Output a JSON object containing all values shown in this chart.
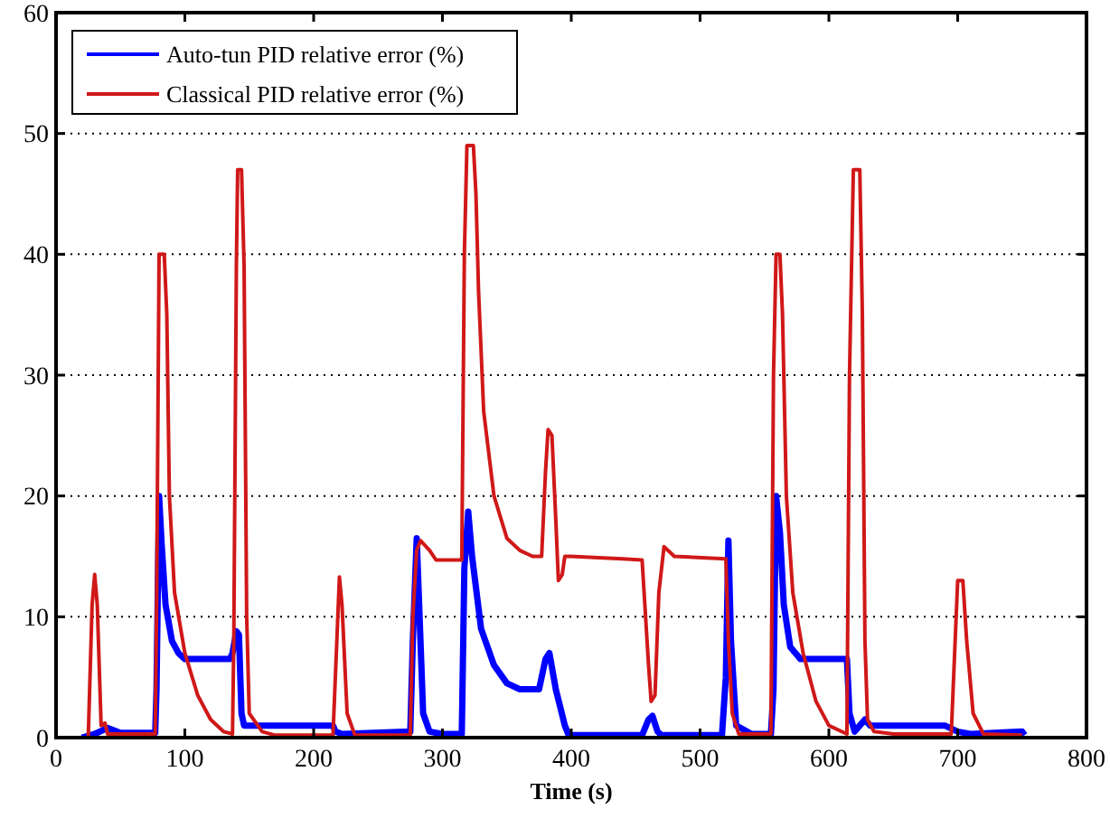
{
  "chart_data": {
    "type": "line",
    "xlabel": "Time (s)",
    "xlim": [
      0,
      800
    ],
    "xticks": [
      0,
      100,
      200,
      300,
      400,
      500,
      600,
      700,
      800
    ],
    "ylim": [
      0,
      60
    ],
    "yticks": [
      0,
      10,
      20,
      30,
      40,
      50,
      60
    ],
    "grid": "y",
    "legend": "top left",
    "line_style": "solid",
    "marker": "none",
    "series": [
      {
        "name": "Auto-tun PID relative error (%)",
        "color": "#0000ff",
        "x": [
          20,
          30,
          40,
          50,
          77,
          78,
          80,
          82,
          85,
          90,
          95,
          100,
          135,
          137,
          140,
          142,
          144,
          146,
          215,
          217,
          222,
          275,
          277,
          280,
          285,
          290,
          300,
          315,
          317,
          320,
          323,
          330,
          340,
          350,
          360,
          375,
          380,
          383,
          388,
          395,
          398,
          455,
          460,
          463,
          467,
          470,
          517,
          520,
          522,
          524,
          528,
          540,
          555,
          557,
          559,
          562,
          565,
          570,
          578,
          614,
          616,
          620,
          624,
          628,
          632,
          640,
          690,
          700,
          710,
          750,
          752
        ],
        "values": [
          0,
          0.3,
          0.8,
          0.4,
          0.4,
          4,
          20,
          16,
          11,
          8,
          7,
          6.5,
          6.5,
          7,
          8.8,
          8.5,
          2,
          1,
          1,
          0.5,
          0.3,
          0.5,
          8,
          16.5,
          2,
          0.5,
          0.3,
          0.3,
          14,
          18.7,
          15,
          9,
          6,
          4.5,
          4,
          4,
          6.5,
          7,
          4,
          1,
          0.2,
          0.2,
          1.5,
          1.8,
          0.5,
          0.2,
          0.2,
          5,
          16.3,
          8,
          1,
          0.3,
          0.3,
          4,
          20,
          17,
          11,
          7.5,
          6.5,
          6.5,
          2,
          0.5,
          1,
          1.5,
          1,
          1,
          1,
          0.5,
          0.3,
          0.5,
          0.2
        ]
      },
      {
        "name": "Classical PID relative error (%)",
        "color": "#d01818",
        "x": [
          20,
          25,
          28,
          30,
          32,
          35,
          38,
          40,
          77,
          78,
          80,
          84,
          86,
          88,
          92,
          100,
          110,
          120,
          130,
          137,
          138,
          140,
          141,
          144,
          146,
          148,
          150,
          160,
          170,
          215,
          218,
          220,
          222,
          226,
          232,
          275,
          277,
          280,
          283,
          290,
          295,
          315,
          317,
          319,
          324,
          326,
          328,
          332,
          340,
          350,
          360,
          370,
          377,
          380,
          382,
          385,
          388,
          390,
          393,
          395,
          400,
          440,
          455,
          460,
          462,
          465,
          468,
          472,
          480,
          520,
          522,
          525,
          530,
          555,
          557,
          559,
          562,
          564,
          567,
          572,
          580,
          590,
          600,
          614,
          616,
          619,
          624,
          626,
          628,
          630,
          635,
          650,
          695,
          700,
          704,
          707,
          712,
          720,
          750
        ],
        "values": [
          0,
          0,
          11,
          13.5,
          11,
          1,
          1.2,
          0.3,
          0.3,
          10,
          40,
          40,
          35,
          20,
          12,
          7,
          3.5,
          1.5,
          0.5,
          0.3,
          8,
          39,
          47,
          47,
          39,
          10,
          2,
          0.5,
          0.2,
          0.2,
          8,
          13.3,
          11,
          2,
          0.2,
          0.2,
          10,
          15.5,
          16.3,
          15.5,
          14.7,
          14.7,
          40,
          49,
          49,
          45,
          37,
          27,
          20,
          16.5,
          15.5,
          15,
          15,
          22,
          25.5,
          25,
          18,
          13,
          13.5,
          15,
          15,
          14.8,
          14.7,
          6,
          3,
          3.5,
          12,
          15.8,
          15,
          14.8,
          8,
          2,
          0.3,
          0.3,
          30,
          40,
          40,
          35,
          20,
          12,
          7,
          3,
          1,
          0.3,
          30,
          47,
          47,
          35,
          8,
          1.5,
          0.5,
          0.3,
          0.3,
          13,
          13,
          8,
          2,
          0.3,
          0.2
        ]
      }
    ]
  }
}
